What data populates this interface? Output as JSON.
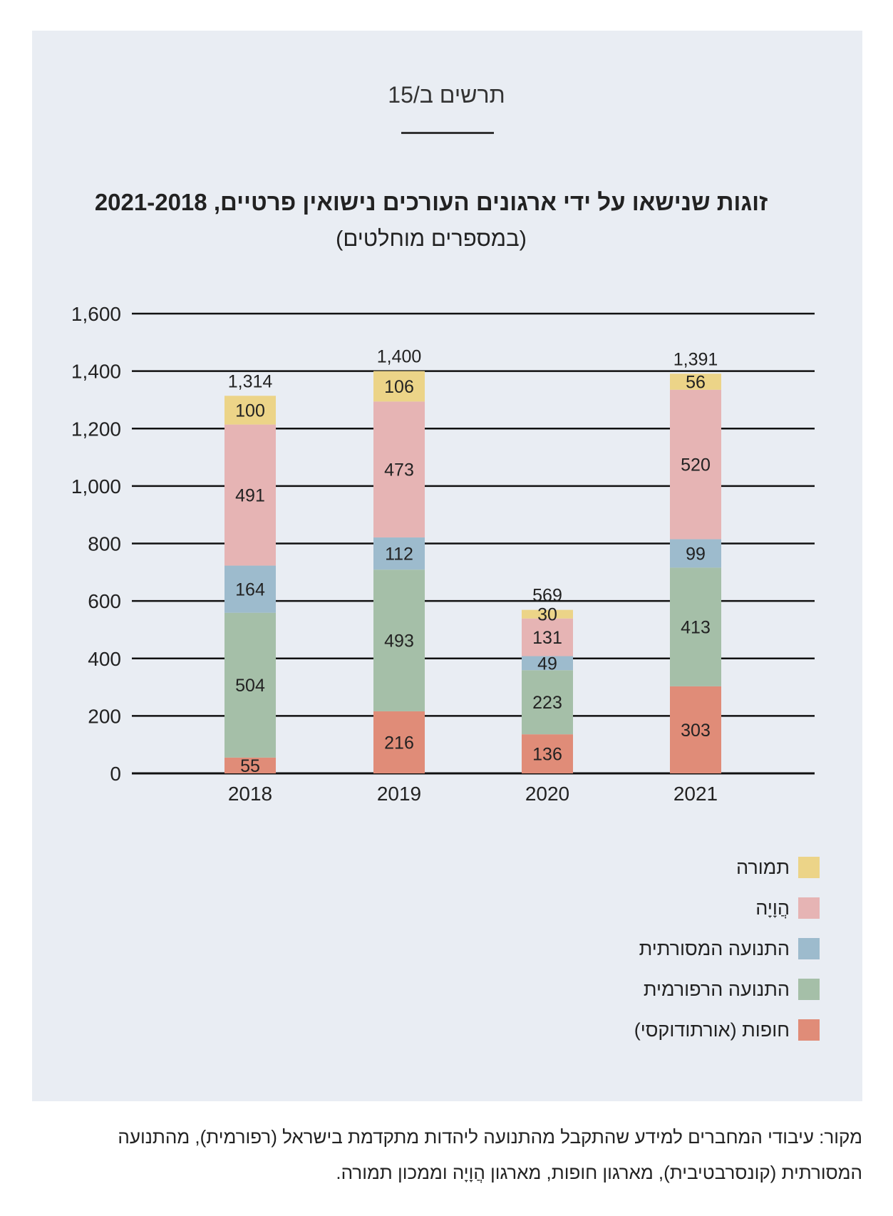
{
  "figure_label": "תרשים ב/15",
  "source_text": "מקור: עיבודי המחברים למידע שהתקבל מהתנועה ליהדות מתקדמת בישראל (רפורמית), מהתנועה המסורתית (קונסרבטיבית), מארגון חופות, מארגון הֲוָיָה וממכון תמורה.",
  "chart_data": {
    "type": "bar",
    "stacked": true,
    "title": "זוגות שנישאו על ידי ארגונים העורכים נישואין פרטיים, 2021-2018",
    "subtitle": "(במספרים מוחלטים)",
    "categories": [
      "2018",
      "2019",
      "2020",
      "2021"
    ],
    "series": [
      {
        "name": "חופות (אורתודוקסי)",
        "color": "#e08c78",
        "values": [
          55,
          216,
          136,
          303
        ]
      },
      {
        "name": "התנועה הרפורמית",
        "color": "#a5bfa8",
        "values": [
          504,
          493,
          223,
          413
        ]
      },
      {
        "name": "התנועה המסורתית",
        "color": "#9dbbcd",
        "values": [
          164,
          112,
          49,
          99
        ]
      },
      {
        "name": "הֲוָיָה",
        "color": "#e6b4b4",
        "values": [
          491,
          473,
          131,
          520
        ]
      },
      {
        "name": "תמורה",
        "color": "#ecd488",
        "values": [
          100,
          106,
          30,
          56
        ]
      }
    ],
    "totals": [
      "1,314",
      "1,400",
      "569",
      "1,391"
    ],
    "y_ticks": [
      "0",
      "200",
      "400",
      "600",
      "800",
      "1,000",
      "1,200",
      "1,400",
      "1,600"
    ],
    "ylim": [
      0,
      1600
    ],
    "grid": true,
    "legend_position": "bottom-right"
  }
}
